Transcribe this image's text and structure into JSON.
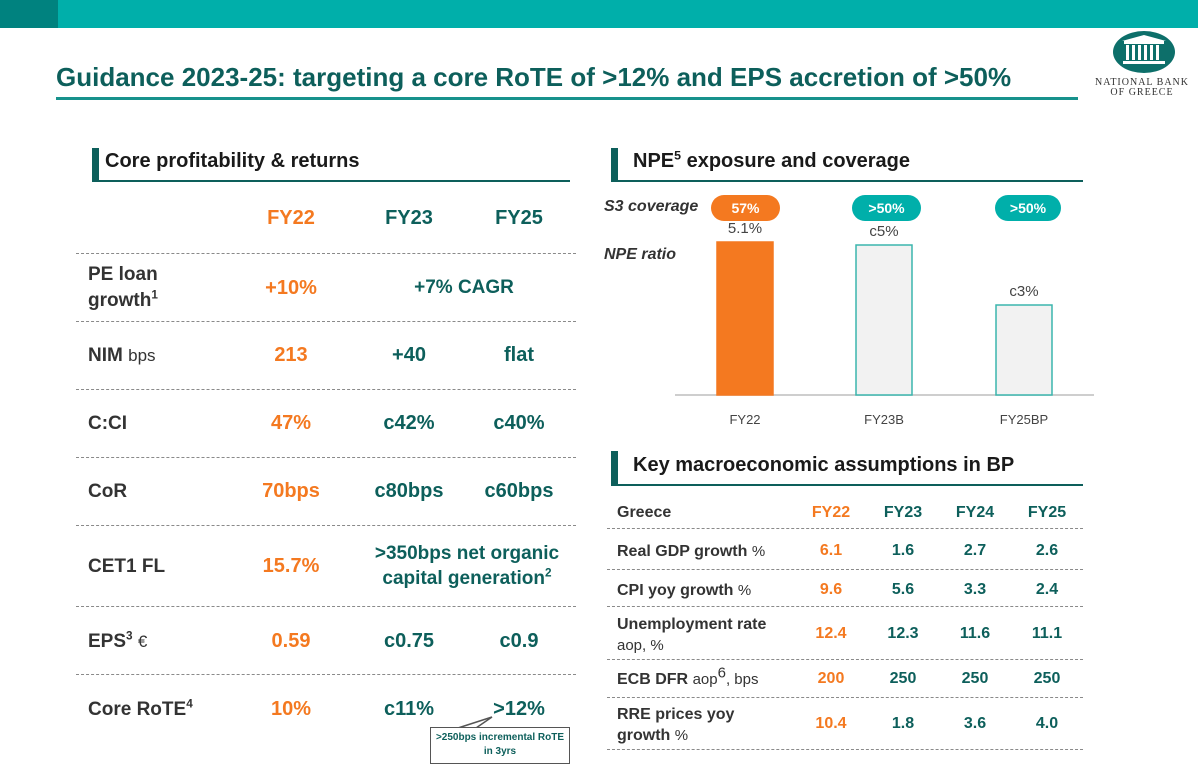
{
  "header": {
    "title": "Guidance 2023-25: targeting a core RoTE of >12% and EPS accretion of >50%",
    "logo_line1": "NATIONAL BANK",
    "logo_line2": "OF GREECE"
  },
  "colors": {
    "accent_orange": "#f47920",
    "brand_teal": "#0d5f5b",
    "bar_teal": "#00afaa"
  },
  "left": {
    "section_title": "Core profitability & returns",
    "columns": [
      "FY22",
      "FY23",
      "FY25"
    ],
    "rows": {
      "pe_loan": {
        "label": "PE loan growth",
        "sup": "1",
        "fy22": "+10%",
        "span": "+7% CAGR"
      },
      "nim": {
        "label": "NIM",
        "unit": "bps",
        "fy22": "213",
        "fy23": "+40",
        "fy25": "flat"
      },
      "cci": {
        "label": "C:CI",
        "fy22": "47%",
        "fy23": "c42%",
        "fy25": "c40%"
      },
      "cor": {
        "label": "CoR",
        "fy22": "70bps",
        "fy23": "c80bps",
        "fy25": "c60bps"
      },
      "cet1": {
        "label": "CET1 FL",
        "fy22": "15.7%",
        "span": ">350bps net organic capital generation",
        "span_sup": "2"
      },
      "eps": {
        "label": "EPS",
        "sup": "3",
        "unit": "€",
        "fy22": "0.59",
        "fy23": "c0.75",
        "fy25": "c0.9"
      },
      "rote": {
        "label": "Core RoTE",
        "sup": "4",
        "fy22": "10%",
        "fy23": "c11%",
        "fy25": ">12%"
      }
    },
    "callout": ">250bps incremental RoTE in 3yrs"
  },
  "npe": {
    "section_title": "NPE exposure and coverage",
    "title_sup": "5",
    "s3_label": "S3 coverage",
    "npe_label": "NPE ratio",
    "coverage": [
      "57%",
      ">50%",
      ">50%"
    ]
  },
  "chart_data": {
    "type": "bar",
    "title": "NPE ratio",
    "categories": [
      "FY22",
      "FY23B",
      "FY25BP"
    ],
    "values": [
      5.1,
      5,
      3
    ],
    "data_labels": [
      "5.1%",
      "c5%",
      "c3%"
    ],
    "ylim": [
      0,
      5.5
    ],
    "xlabel": "",
    "ylabel": ""
  },
  "macro": {
    "section_title": "Key macroeconomic assumptions in BP",
    "header_label": "Greece",
    "columns": [
      "FY22",
      "FY23",
      "FY24",
      "FY25"
    ],
    "rows": [
      {
        "label": "Real GDP growth",
        "unit": "%",
        "values": [
          "6.1",
          "1.6",
          "2.7",
          "2.6"
        ]
      },
      {
        "label": "CPI yoy growth",
        "unit": "%",
        "values": [
          "9.6",
          "5.6",
          "3.3",
          "2.4"
        ]
      },
      {
        "label": "Unemployment rate",
        "unit": "aop, %",
        "values": [
          "12.4",
          "12.3",
          "11.6",
          "11.1"
        ]
      },
      {
        "label": "ECB DFR",
        "unit_pre": "aop",
        "unit_sup": "6",
        "unit": ", bps",
        "values": [
          "200",
          "250",
          "250",
          "250"
        ]
      },
      {
        "label": "RRE prices yoy growth",
        "unit": "%",
        "values": [
          "10.4",
          "1.8",
          "3.6",
          "4.0"
        ]
      }
    ]
  }
}
